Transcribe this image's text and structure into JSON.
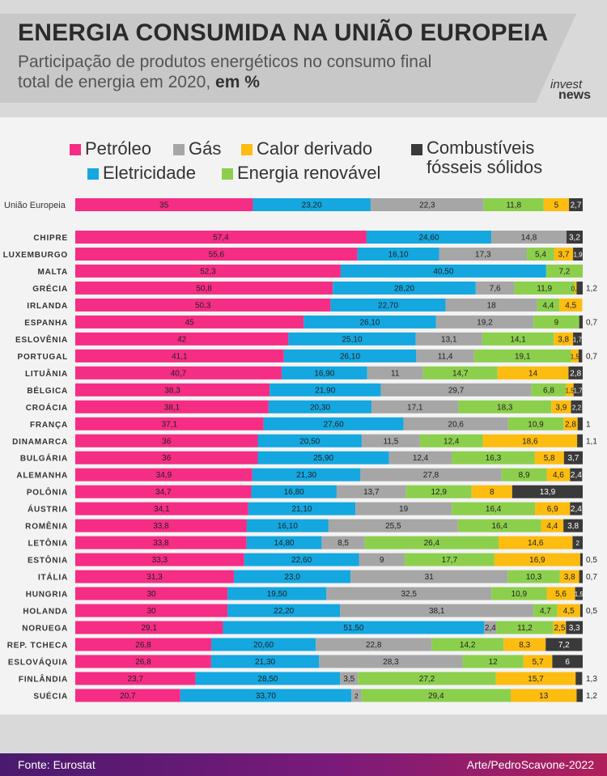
{
  "header": {
    "title": "ENERGIA CONSUMIDA NA UNIÃO EUROPEIA",
    "subtitle_line1": "Participação de produtos energéticos no consumo final",
    "subtitle_line2": "total de energia em 2020,",
    "subtitle_bold": "em %",
    "logo_line1": "invest",
    "logo_line2": "news"
  },
  "footer": {
    "source": "Fonte: Eurostat",
    "credit": "Arte/PedroScavone-2022"
  },
  "chart_data": {
    "type": "bar",
    "orientation": "horizontal",
    "stacked": true,
    "xlim": [
      0,
      100
    ],
    "grid": false,
    "legend_position": "top",
    "series": [
      {
        "name": "Petróleo",
        "color": "#f52d84"
      },
      {
        "name": "Eletricidade",
        "color": "#14a7e0"
      },
      {
        "name": "Gás",
        "color": "#a6a6a6"
      },
      {
        "name": "Energia renovável",
        "color": "#8ccf4d"
      },
      {
        "name": "Calor derivado",
        "color": "#fcbc10"
      },
      {
        "name": "Combustíveis fósseis sólidos",
        "color": "#3a3a3a"
      }
    ],
    "legend_order": [
      "Petróleo",
      "Gás",
      "Calor derivado",
      "Combustíveis fósseis sólidos",
      "Eletricidade",
      "Energia renovável"
    ],
    "rows": [
      {
        "label": "União Europeia",
        "values": [
          35,
          23.2,
          22.3,
          11.8,
          5,
          2.7
        ],
        "labels": [
          "35",
          "23,20",
          "22,3",
          "11,8",
          "5",
          "2,7"
        ]
      },
      {
        "label": "CHIPRE",
        "values": [
          57.4,
          24.6,
          14.8,
          0,
          0,
          3.2
        ],
        "labels": [
          "57,4",
          "24,60",
          "14,8",
          "",
          "",
          "3,2"
        ]
      },
      {
        "label": "LUXEMBURGO",
        "values": [
          55.6,
          16.1,
          17.3,
          5.4,
          3.7,
          1.9
        ],
        "labels": [
          "55,6",
          "16,10",
          "17,3",
          "5,4",
          "3,7",
          "1,9"
        ]
      },
      {
        "label": "MALTA",
        "values": [
          52.3,
          40.5,
          0,
          7.2,
          0,
          0
        ],
        "labels": [
          "52,3",
          "40,50",
          "",
          "7,2",
          "",
          ""
        ]
      },
      {
        "label": "GRÉCIA",
        "values": [
          50.8,
          28.2,
          7.6,
          11.9,
          0.4,
          1.2
        ],
        "labels": [
          "50,8",
          "28,20",
          "7,6",
          "11,9",
          "0,4",
          "1,2"
        ]
      },
      {
        "label": "IRLANDA",
        "values": [
          50.3,
          22.7,
          18,
          4.4,
          4.5,
          0
        ],
        "labels": [
          "50,3",
          "22,70",
          "18",
          "4,4",
          "4,5",
          ""
        ]
      },
      {
        "label": "ESPANHA",
        "values": [
          45,
          26.1,
          19.2,
          9,
          0,
          0.7
        ],
        "labels": [
          "45",
          "26,10",
          "19,2",
          "9",
          "",
          "0,7"
        ]
      },
      {
        "label": "ESLOVÊNIA",
        "values": [
          42,
          25.1,
          13.1,
          14.1,
          3.8,
          1.7
        ],
        "labels": [
          "42",
          "25,10",
          "13,1",
          "14,1",
          "3,8",
          "1,7"
        ]
      },
      {
        "label": "PORTUGAL",
        "values": [
          41.1,
          26.1,
          11.4,
          19.1,
          1.5,
          0.7
        ],
        "labels": [
          "41,1",
          "26,10",
          "11,4",
          "19,1",
          "1,5",
          "0,7"
        ]
      },
      {
        "label": "LITUÂNIA",
        "values": [
          40.7,
          16.9,
          11,
          14.7,
          14,
          2.8
        ],
        "labels": [
          "40,7",
          "16,90",
          "11",
          "14,7",
          "14",
          "2,8"
        ]
      },
      {
        "label": "BÉLGICA",
        "values": [
          38.3,
          21.9,
          29.7,
          6.8,
          1.5,
          1.7
        ],
        "labels": [
          "38,3",
          "21,90",
          "29,7",
          "6,8",
          "1,5",
          "1,7"
        ]
      },
      {
        "label": "CROÁCIA",
        "values": [
          38.1,
          20.3,
          17.1,
          18.3,
          3.9,
          2.2
        ],
        "labels": [
          "38,1",
          "20,30",
          "17,1",
          "18,3",
          "3,9",
          "2,2"
        ]
      },
      {
        "label": "FRANÇA",
        "values": [
          37.1,
          27.6,
          20.6,
          10.9,
          2.8,
          1
        ],
        "labels": [
          "37,1",
          "27,60",
          "20,6",
          "10,9",
          "2,8",
          "1"
        ]
      },
      {
        "label": "DINAMARCA",
        "values": [
          36,
          20.5,
          11.5,
          12.4,
          18.6,
          1.1
        ],
        "labels": [
          "36",
          "20,50",
          "11,5",
          "12,4",
          "18,6",
          "1,1"
        ]
      },
      {
        "label": "BULGÁRIA",
        "values": [
          36,
          25.9,
          12.4,
          16.3,
          5.8,
          3.7
        ],
        "labels": [
          "36",
          "25,90",
          "12,4",
          "16,3",
          "5,8",
          "3,7"
        ]
      },
      {
        "label": "ALEMANHA",
        "values": [
          34.9,
          21.3,
          27.8,
          8.9,
          4.6,
          2.4
        ],
        "labels": [
          "34,9",
          "21,30",
          "27,8",
          "8,9",
          "4,6",
          "2,4"
        ]
      },
      {
        "label": "POLÔNIA",
        "values": [
          34.7,
          16.8,
          13.7,
          12.9,
          8,
          13.9
        ],
        "labels": [
          "34,7",
          "16,80",
          "13,7",
          "12,9",
          "8",
          "13,9"
        ]
      },
      {
        "label": "ÁUSTRIA",
        "values": [
          34.1,
          21.1,
          19,
          16.4,
          6.9,
          2.4
        ],
        "labels": [
          "34,1",
          "21,10",
          "19",
          "16,4",
          "6,9",
          "2,4"
        ]
      },
      {
        "label": "ROMÊNIA",
        "values": [
          33.8,
          16.1,
          25.5,
          16.4,
          4.4,
          3.8
        ],
        "labels": [
          "33,8",
          "16,10",
          "25,5",
          "16,4",
          "4,4",
          "3,8"
        ]
      },
      {
        "label": "LETÔNIA",
        "values": [
          33.8,
          14.8,
          8.5,
          26.4,
          14.6,
          2
        ],
        "labels": [
          "33,8",
          "14,80",
          "8,5",
          "26,4",
          "14,6",
          "2"
        ]
      },
      {
        "label": "ESTÔNIA",
        "values": [
          33.3,
          22.6,
          9,
          17.7,
          16.9,
          0.5
        ],
        "labels": [
          "33,3",
          "22,60",
          "9",
          "17,7",
          "16,9",
          "0,5"
        ]
      },
      {
        "label": "ITÁLIA",
        "values": [
          31.3,
          23,
          31,
          10.3,
          3.8,
          0.7
        ],
        "labels": [
          "31,3",
          "23,0",
          "31",
          "10,3",
          "3,8",
          "0,7"
        ]
      },
      {
        "label": "HUNGRIA",
        "values": [
          30,
          19.5,
          32.5,
          10.9,
          5.6,
          1.5
        ],
        "labels": [
          "30",
          "19,50",
          "32,5",
          "10,9",
          "5,6",
          "1,5"
        ]
      },
      {
        "label": "HOLANDA",
        "values": [
          30,
          22.2,
          38.1,
          4.7,
          4.5,
          0.5
        ],
        "labels": [
          "30",
          "22,20",
          "38,1",
          "4,7",
          "4,5",
          "0,5"
        ]
      },
      {
        "label": "NORUEGA",
        "values": [
          29.1,
          51.5,
          2.4,
          11.2,
          2.5,
          3.3
        ],
        "labels": [
          "29,1",
          "51,50",
          "2,4",
          "11,2",
          "2,5",
          "3,3"
        ]
      },
      {
        "label": "REP. TCHECA",
        "values": [
          26.8,
          20.6,
          22.8,
          14.2,
          8.3,
          7.2
        ],
        "labels": [
          "26,8",
          "20,60",
          "22,8",
          "14,2",
          "8,3",
          "7,2"
        ]
      },
      {
        "label": "ESLOVÁQUIA",
        "values": [
          26.8,
          21.3,
          28.3,
          12,
          5.7,
          6
        ],
        "labels": [
          "26,8",
          "21,30",
          "28,3",
          "12",
          "5,7",
          "6"
        ]
      },
      {
        "label": "FINLÂNDIA",
        "values": [
          23.7,
          28.5,
          3.5,
          27.2,
          15.7,
          1.3
        ],
        "labels": [
          "23,7",
          "28,50",
          "3,5",
          "27,2",
          "15,7",
          "1,3"
        ]
      },
      {
        "label": "SUÉCIA",
        "values": [
          20.7,
          33.7,
          2,
          29.4,
          13,
          1.2
        ],
        "labels": [
          "20,7",
          "33,70",
          "2",
          "29,4",
          "13",
          "1,2"
        ]
      }
    ]
  }
}
